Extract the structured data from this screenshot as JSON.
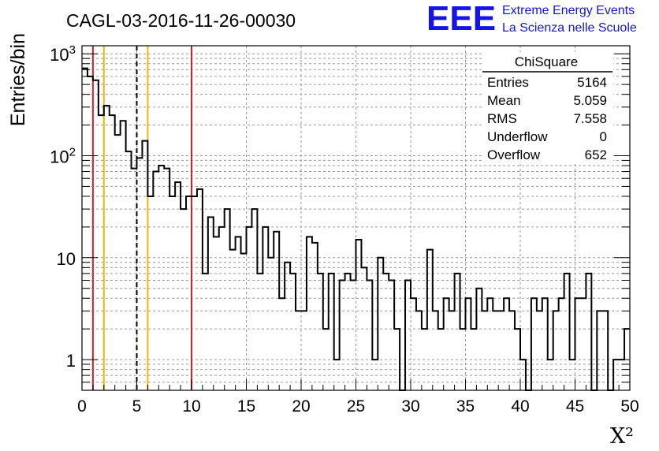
{
  "header": {
    "run_title": "CAGL-03-2016-11-26-00030",
    "logo_text": "EEE",
    "logo_line1": "Extreme Energy Events",
    "logo_line2": "La Scienza nelle Scuole",
    "logo_color": "#1414e6"
  },
  "stats_box": {
    "title": "ChiSquare",
    "rows": [
      {
        "label": "Entries",
        "value": "5164"
      },
      {
        "label": "Mean",
        "value": "5.059"
      },
      {
        "label": "RMS",
        "value": "7.558"
      },
      {
        "label": "Underflow",
        "value": "0"
      },
      {
        "label": "Overflow",
        "value": "652"
      }
    ]
  },
  "chart_data": {
    "type": "histogram",
    "title": "CAGL-03-2016-11-26-00030",
    "xlabel": "X²",
    "ylabel": "Entries/bin",
    "y_scale": "log",
    "xlim": [
      0,
      50
    ],
    "ylim": [
      0.5,
      1200
    ],
    "grid": true,
    "bin_width": 0.5,
    "x_ticks": [
      {
        "value": 0,
        "label": "0"
      },
      {
        "value": 5,
        "label": "5"
      },
      {
        "value": 10,
        "label": "10"
      },
      {
        "value": 15,
        "label": "15"
      },
      {
        "value": 20,
        "label": "20"
      },
      {
        "value": 25,
        "label": "25"
      },
      {
        "value": 30,
        "label": "30"
      },
      {
        "value": 35,
        "label": "35"
      },
      {
        "value": 40,
        "label": "40"
      },
      {
        "value": 45,
        "label": "45"
      },
      {
        "value": 50,
        "label": "50"
      }
    ],
    "y_ticks": [
      {
        "value": 1,
        "base": "1",
        "exp": ""
      },
      {
        "value": 10,
        "base": "10",
        "exp": ""
      },
      {
        "value": 100,
        "base": "10",
        "exp": "2"
      },
      {
        "value": 1000,
        "base": "10",
        "exp": "3"
      }
    ],
    "reference_lines": [
      {
        "x": 1,
        "color": "#e02020",
        "style": "solid"
      },
      {
        "x": 2,
        "color": "#f0b800",
        "style": "solid"
      },
      {
        "x": 5,
        "color": "#000000",
        "style": "dashed"
      },
      {
        "x": 6,
        "color": "#f0b800",
        "style": "solid"
      },
      {
        "x": 10,
        "color": "#e02020",
        "style": "solid"
      }
    ],
    "bin_contents": [
      720,
      600,
      550,
      250,
      310,
      250,
      160,
      220,
      110,
      75,
      95,
      140,
      40,
      70,
      80,
      75,
      40,
      55,
      30,
      40,
      40,
      47,
      7,
      25,
      16,
      20,
      30,
      12,
      16,
      11,
      20,
      30,
      7,
      20,
      10,
      18,
      4,
      9,
      7,
      3,
      3,
      16,
      14,
      7,
      2,
      7,
      1,
      6,
      7,
      6,
      15,
      8,
      6,
      1,
      10,
      7,
      6,
      2,
      0.3,
      6,
      4,
      3,
      2,
      12,
      3,
      2,
      4,
      3,
      7,
      2,
      4,
      2,
      5,
      3,
      4,
      3,
      3,
      4,
      3,
      2,
      1,
      0.3,
      4,
      3,
      4,
      1,
      3,
      4,
      7,
      1,
      4,
      4,
      7,
      0.3,
      3,
      3,
      0.3,
      1,
      1,
      2
    ]
  }
}
